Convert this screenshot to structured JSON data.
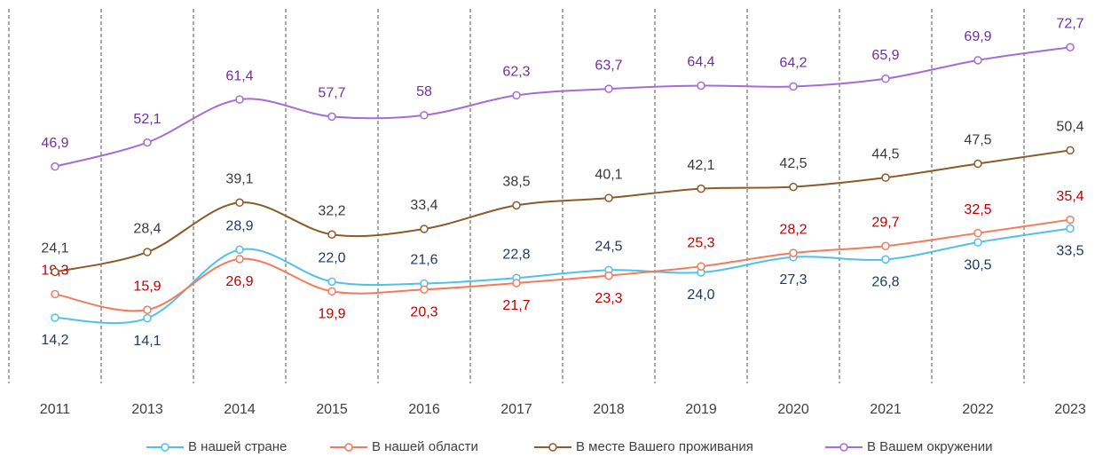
{
  "chart_data": {
    "type": "line",
    "categories": [
      "2011",
      "2013",
      "2014",
      "2015",
      "2016",
      "2017",
      "2018",
      "2019",
      "2020",
      "2021",
      "2022",
      "2023"
    ],
    "ylim": [
      0,
      81
    ],
    "series": [
      {
        "name": "В нашей стране",
        "color": "#4fc1e9",
        "label_color": "#1f3864",
        "values": [
          14.2,
          14.1,
          28.9,
          22.0,
          21.6,
          22.8,
          24.5,
          24.0,
          27.3,
          26.8,
          30.5,
          33.5
        ],
        "value_labels": [
          "14,2",
          "14,1",
          "28,9",
          "22,0",
          "21,6",
          "22,8",
          "24,5",
          "24,0",
          "27,3",
          "26,8",
          "30,5",
          "33,5"
        ]
      },
      {
        "name": "В нашей области",
        "color": "#f47a5e",
        "label_color": "#c00000",
        "values": [
          19.3,
          15.9,
          26.9,
          19.9,
          20.3,
          21.7,
          23.3,
          25.3,
          28.2,
          29.7,
          32.5,
          35.4
        ],
        "value_labels": [
          "19,3",
          "15,9",
          "26,9",
          "19,9",
          "20,3",
          "21,7",
          "23,3",
          "25,3",
          "28,2",
          "29,7",
          "32,5",
          "35,4"
        ]
      },
      {
        "name": "В месте Вашего проживания",
        "color": "#8c5a2b",
        "label_color": "#3a3a3a",
        "values": [
          24.1,
          28.4,
          39.1,
          32.2,
          33.4,
          38.5,
          40.1,
          42.1,
          42.5,
          44.5,
          47.5,
          50.4
        ],
        "value_labels": [
          "24,1",
          "28,4",
          "39,1",
          "32,2",
          "33,4",
          "38,5",
          "40,1",
          "42,1",
          "42,5",
          "44,5",
          "47,5",
          "50,4"
        ]
      },
      {
        "name": "В Вашем окружении",
        "color": "#a66cd6",
        "label_color": "#7030a0",
        "values": [
          46.9,
          52.1,
          61.4,
          57.7,
          58,
          62.3,
          63.7,
          64.4,
          64.2,
          65.9,
          69.9,
          72.7
        ],
        "value_labels": [
          "46,9",
          "52,1",
          "61,4",
          "57,7",
          "58",
          "62,3",
          "63,7",
          "64,4",
          "64,2",
          "65,9",
          "69,9",
          "72,7"
        ]
      }
    ]
  }
}
